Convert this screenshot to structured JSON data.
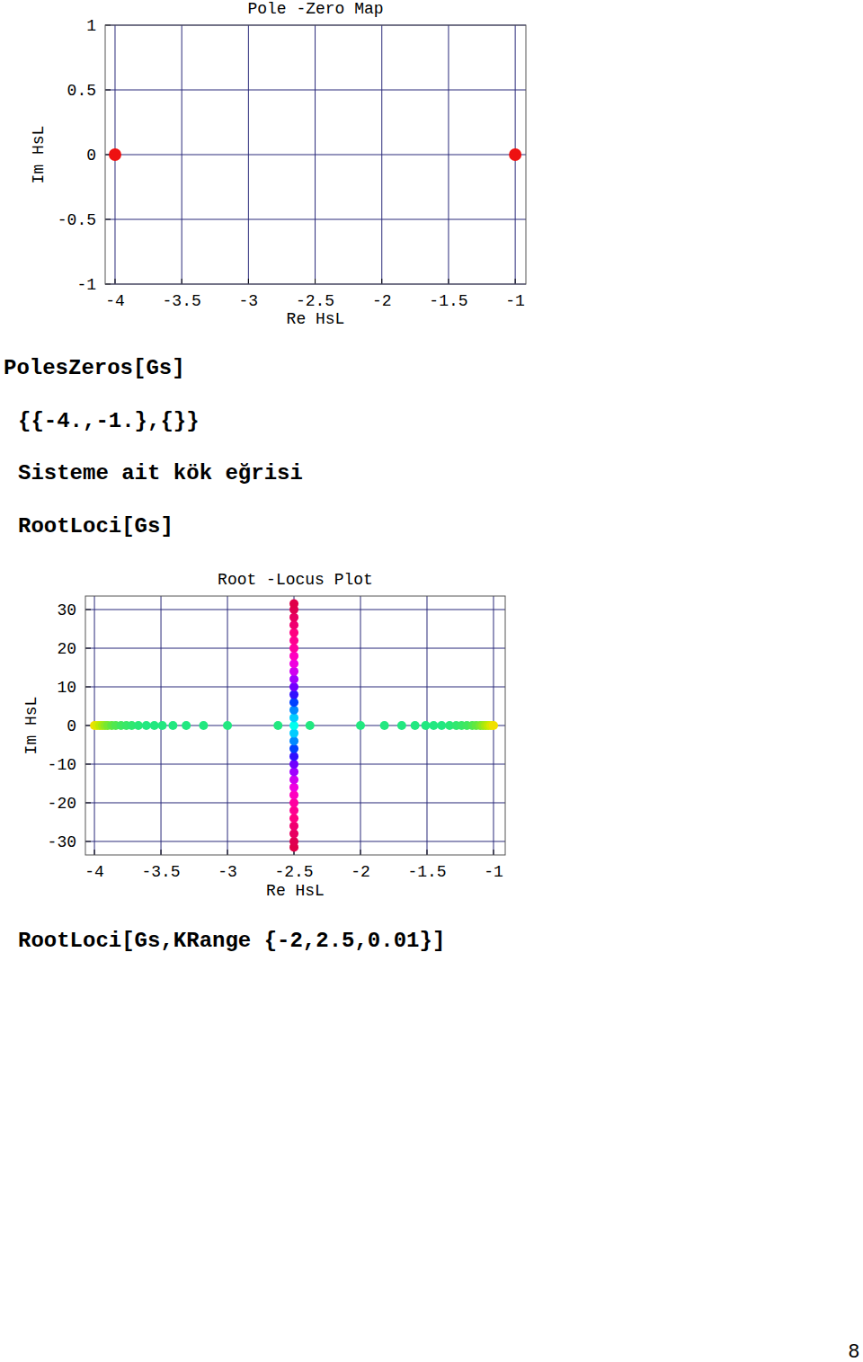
{
  "chart_data": [
    {
      "type": "scatter",
      "title": "Pole -Zero Map",
      "x_label": "Re HsL",
      "y_label": "Im HsL",
      "xlim": [
        -4.074,
        -0.92
      ],
      "ylim": [
        -1,
        1
      ],
      "xticks": [
        -4,
        -3.5,
        -3,
        -2.5,
        -2,
        -1.5,
        -1
      ],
      "yticks": [
        -1,
        -0.5,
        0,
        0.5,
        1
      ],
      "grid": true,
      "marker": "circle",
      "series": [
        {
          "x": [
            -4,
            -1
          ],
          "values": [
            0,
            0
          ],
          "color": "#ee1111"
        }
      ]
    },
    {
      "type": "scatter",
      "title": "Root -Locus Plot",
      "x_label": "Re HsL",
      "y_label": "Im HsL",
      "xlim": [
        -4.068,
        -0.912
      ],
      "ylim": [
        -33.5,
        33.5
      ],
      "xticks": [
        -4,
        -3.5,
        -3,
        -2.5,
        -2,
        -1.5,
        -1
      ],
      "yticks": [
        -30,
        -20,
        -10,
        0,
        10,
        20,
        30
      ],
      "grid": true,
      "marker": "circle",
      "series": [
        {
          "x": [
            -4.0,
            -3.98,
            -3.96,
            -3.94,
            -3.92,
            -3.9,
            -3.87,
            -3.84,
            -3.8,
            -3.76,
            -3.72,
            -3.67,
            -3.61,
            -3.55,
            -3.49,
            -3.41,
            -3.31,
            -3.18,
            -3.0,
            -2.62,
            -2.38,
            -2.0,
            -1.82,
            -1.69,
            -1.59,
            -1.51,
            -1.45,
            -1.39,
            -1.33,
            -1.28,
            -1.24,
            -1.2,
            -1.16,
            -1.13,
            -1.1,
            -1.08,
            -1.06,
            -1.04,
            -1.02,
            -1.0,
            -2.5,
            -2.5,
            -2.5,
            -2.5,
            -2.5,
            -2.5,
            -2.5,
            -2.5,
            -2.5,
            -2.5,
            -2.5,
            -2.5,
            -2.5,
            -2.5,
            -2.5,
            -2.5,
            -2.5,
            -2.5,
            -2.5,
            -2.5,
            -2.5,
            -2.5,
            -2.5,
            -2.5,
            -2.5,
            -2.5,
            -2.5,
            -2.5,
            -2.5,
            -2.5,
            -2.5,
            -2.5,
            -2.5
          ],
          "values": [
            0,
            0,
            0,
            0,
            0,
            0,
            0,
            0,
            0,
            0,
            0,
            0,
            0,
            0,
            0,
            0,
            0,
            0,
            0,
            0,
            0,
            0,
            0,
            0,
            0,
            0,
            0,
            0,
            0,
            0,
            0,
            0,
            0,
            0,
            0,
            0,
            0,
            0,
            0,
            0,
            -31.5,
            -30,
            -28,
            -26,
            -24,
            -22,
            -20,
            -18,
            -16,
            -14,
            -12,
            -10,
            -8,
            -6,
            -4,
            -2,
            0,
            2,
            4,
            6,
            8,
            10,
            12,
            14,
            16,
            18,
            20,
            22,
            24,
            26,
            28,
            30,
            31.5
          ],
          "colors": [
            "#f0e000",
            "#d8e800",
            "#c0ea00",
            "#a8e810",
            "#90e820",
            "#78e830",
            "#60e840",
            "#50e850",
            "#40e860",
            "#38e868",
            "#30e870",
            "#28e878",
            "#22e880",
            "#22e880",
            "#22e880",
            "#22e880",
            "#22e880",
            "#22e880",
            "#22e880",
            "#22e880",
            "#22e880",
            "#22e880",
            "#22e880",
            "#22e880",
            "#22e880",
            "#22e880",
            "#22e880",
            "#22e880",
            "#28e878",
            "#30e870",
            "#38e868",
            "#40e860",
            "#50e850",
            "#60e840",
            "#78e830",
            "#90e820",
            "#a8e810",
            "#c0ea00",
            "#d8e800",
            "#f0e000",
            "#e00048",
            "#e00050",
            "#e80060",
            "#f00070",
            "#ff0080",
            "#ff0090",
            "#ff00a0",
            "#ff00c0",
            "#f000e0",
            "#d000f0",
            "#a000ff",
            "#7000ff",
            "#3010ff",
            "#0040ff",
            "#0088ff",
            "#00ccff",
            "#00ffee",
            "#00ccff",
            "#0088ff",
            "#0040ff",
            "#3010ff",
            "#7000ff",
            "#a000ff",
            "#d000f0",
            "#f000e0",
            "#ff00c0",
            "#ff00a0",
            "#ff0090",
            "#ff0080",
            "#f00070",
            "#e80060",
            "#e00050",
            "#e00048"
          ]
        }
      ]
    }
  ],
  "text": {
    "code_1": "PolesZeros[Gs]",
    "output_1": "{{-4.,-1.},{}}",
    "heading": "Sisteme ait kök eğrisi",
    "code_2": "RootLoci[Gs]",
    "code_3": "RootLoci[Gs,KRange {-2,2.5,0.01}]",
    "page_number": "8"
  }
}
